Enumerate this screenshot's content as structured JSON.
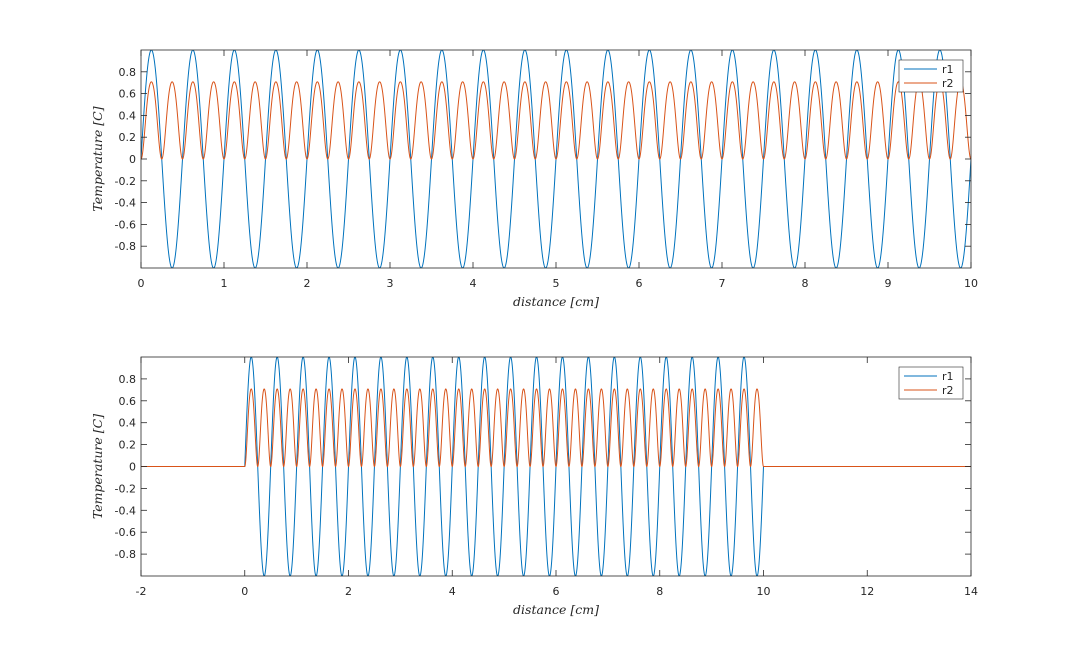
{
  "colors": {
    "r1": "#0072BD",
    "r2": "#D95319",
    "axis": "#262626",
    "background": "#ffffff"
  },
  "chart_data": [
    {
      "type": "line",
      "xlabel": "distance [cm]",
      "ylabel": "Temperature [C]",
      "xlim": [
        0,
        10
      ],
      "ylim": [
        -1,
        1
      ],
      "xticks": [
        0,
        1,
        2,
        3,
        4,
        5,
        6,
        7,
        8,
        9,
        10
      ],
      "yticks": [
        -0.8,
        -0.6,
        -0.4,
        -0.2,
        0,
        0.2,
        0.4,
        0.6,
        0.8
      ],
      "ytick_labels": [
        "-0.8",
        "-0.6",
        "-0.4",
        "-0.2",
        "0",
        "0.2",
        "0.4",
        "0.6",
        "0.8"
      ],
      "grid": false,
      "legend": "top-right",
      "series": [
        {
          "name": "r1",
          "color": "#0072BD",
          "formula": "sin(2*pi*f*x)",
          "frequency": 2,
          "x_range": [
            0,
            10
          ]
        },
        {
          "name": "r2",
          "color": "#D95319",
          "formula": "sin(sin(2*pi*f*x))^2",
          "frequency": 2,
          "x_range": [
            0,
            10
          ]
        }
      ]
    },
    {
      "type": "line",
      "xlabel": "distance [cm]",
      "ylabel": "Temperature [C]",
      "xlim": [
        -2,
        14
      ],
      "ylim": [
        -1,
        1
      ],
      "xticks": [
        -2,
        0,
        2,
        4,
        6,
        8,
        10,
        12,
        14
      ],
      "yticks": [
        -0.8,
        -0.6,
        -0.4,
        -0.2,
        0,
        0.2,
        0.4,
        0.6,
        0.8
      ],
      "ytick_labels": [
        "-0.8",
        "-0.6",
        "-0.4",
        "-0.2",
        "0",
        "0.2",
        "0.4",
        "0.6",
        "0.8"
      ],
      "grid": false,
      "legend": "top-right",
      "series": [
        {
          "name": "r1",
          "color": "#0072BD",
          "formula": "sin(2*pi*f*x) for 0<=x<=10, else 0",
          "frequency": 2,
          "x_range": [
            -2,
            14
          ],
          "active_range": [
            0,
            10
          ]
        },
        {
          "name": "r2",
          "color": "#D95319",
          "formula": "sin(sin(2*pi*f*x))^2 for 0<=x<=10, else 0",
          "frequency": 2,
          "x_range": [
            -2,
            14
          ],
          "active_range": [
            0,
            10
          ]
        }
      ]
    }
  ]
}
